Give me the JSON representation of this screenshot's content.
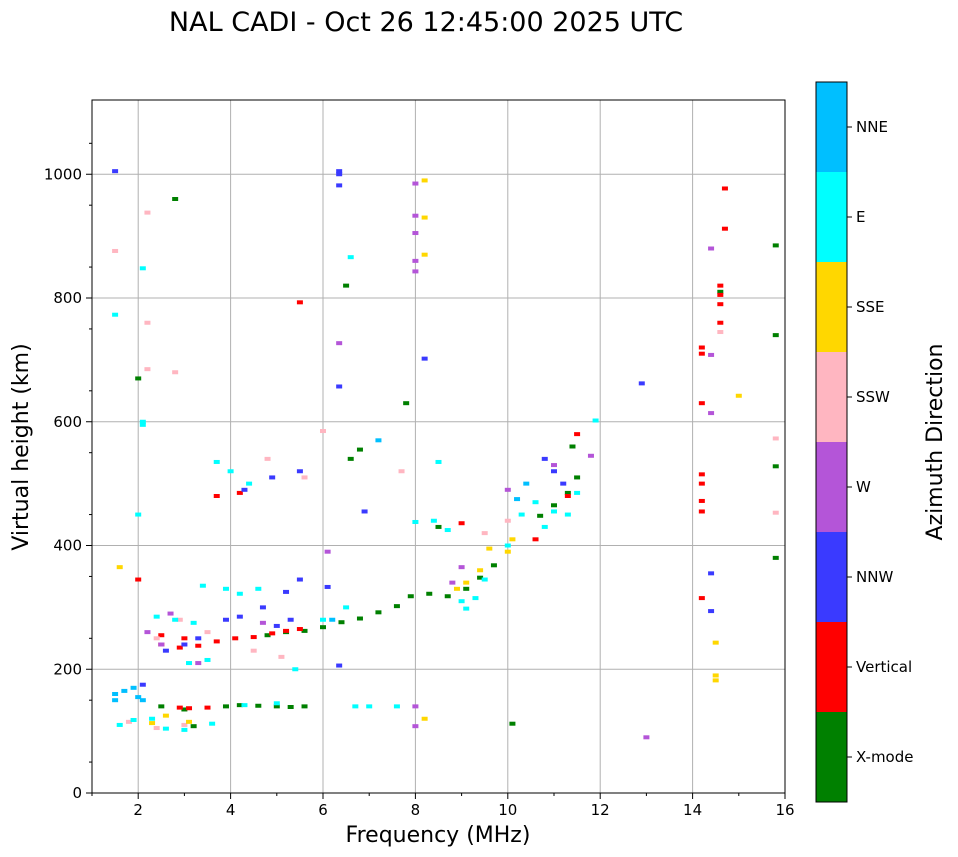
{
  "chart_data": {
    "type": "scatter",
    "title": "NAL CADI - Oct 26 12:45:00 2025 UTC",
    "xlabel": "Frequency (MHz)",
    "ylabel": "Virtual height (km)",
    "xlim": [
      1,
      16
    ],
    "ylim": [
      0,
      1120
    ],
    "xticks": [
      2,
      4,
      6,
      8,
      10,
      12,
      14,
      16
    ],
    "yticks": [
      0,
      200,
      400,
      600,
      800,
      1000
    ],
    "grid": true,
    "colorbar": {
      "title": "Azimuth Direction",
      "categories": [
        {
          "name": "X-mode",
          "color": "#008000"
        },
        {
          "name": "Vertical",
          "color": "#ff0000"
        },
        {
          "name": "NNW",
          "color": "#3a3aff"
        },
        {
          "name": "W",
          "color": "#b455d8"
        },
        {
          "name": "SSW",
          "color": "#ffb6c1"
        },
        {
          "name": "SSE",
          "color": "#ffd700"
        },
        {
          "name": "E",
          "color": "#00ffff"
        },
        {
          "name": "NNE",
          "color": "#00bfff"
        }
      ]
    },
    "series": [
      {
        "name": "X-mode",
        "points": [
          [
            3.9,
            140
          ],
          [
            4.2,
            142
          ],
          [
            4.6,
            141
          ],
          [
            5.0,
            140
          ],
          [
            5.3,
            139
          ],
          [
            5.6,
            140
          ],
          [
            4.8,
            255
          ],
          [
            5.2,
            260
          ],
          [
            5.6,
            262
          ],
          [
            6.0,
            268
          ],
          [
            6.4,
            276
          ],
          [
            6.8,
            282
          ],
          [
            7.2,
            292
          ],
          [
            7.6,
            302
          ],
          [
            7.9,
            318
          ],
          [
            8.3,
            322
          ],
          [
            8.7,
            318
          ],
          [
            9.1,
            330
          ],
          [
            9.4,
            348
          ],
          [
            9.7,
            368
          ],
          [
            10.7,
            448
          ],
          [
            11.0,
            465
          ],
          [
            11.3,
            485
          ],
          [
            11.5,
            510
          ],
          [
            11.4,
            560
          ],
          [
            6.6,
            540
          ],
          [
            6.8,
            555
          ],
          [
            6.5,
            820
          ],
          [
            7.8,
            630
          ],
          [
            15.8,
            885
          ],
          [
            15.8,
            740
          ],
          [
            15.8,
            528
          ],
          [
            15.8,
            380
          ],
          [
            10.1,
            112
          ],
          [
            3.0,
            135
          ],
          [
            3.2,
            108
          ],
          [
            2.5,
            140
          ],
          [
            8.5,
            430
          ],
          [
            14.6,
            810
          ],
          [
            2.0,
            670
          ],
          [
            2.8,
            960
          ]
        ]
      },
      {
        "name": "Vertical",
        "points": [
          [
            2.5,
            240
          ],
          [
            2.9,
            235
          ],
          [
            3.3,
            238
          ],
          [
            3.7,
            245
          ],
          [
            4.1,
            250
          ],
          [
            4.5,
            252
          ],
          [
            4.9,
            258
          ],
          [
            5.2,
            262
          ],
          [
            5.5,
            265
          ],
          [
            2.9,
            138
          ],
          [
            3.1,
            137
          ],
          [
            3.5,
            138
          ],
          [
            2.5,
            255
          ],
          [
            3.0,
            250
          ],
          [
            4.2,
            485
          ],
          [
            3.7,
            480
          ],
          [
            14.2,
            455
          ],
          [
            14.2,
            472
          ],
          [
            14.2,
            500
          ],
          [
            14.2,
            515
          ],
          [
            14.2,
            630
          ],
          [
            14.2,
            710
          ],
          [
            14.2,
            720
          ],
          [
            14.6,
            760
          ],
          [
            14.6,
            790
          ],
          [
            14.6,
            805
          ],
          [
            14.6,
            820
          ],
          [
            14.7,
            912
          ],
          [
            14.7,
            977
          ],
          [
            14.2,
            315
          ],
          [
            11.5,
            580
          ],
          [
            10.6,
            410
          ],
          [
            11.3,
            480
          ],
          [
            5.5,
            793
          ],
          [
            2.0,
            345
          ],
          [
            9.0,
            436
          ]
        ]
      },
      {
        "name": "NNW",
        "points": [
          [
            6.35,
            1005
          ],
          [
            6.35,
            1000
          ],
          [
            6.35,
            982
          ],
          [
            6.35,
            657
          ],
          [
            6.35,
            206
          ],
          [
            1.5,
            1005
          ],
          [
            3.3,
            250
          ],
          [
            3.9,
            280
          ],
          [
            4.2,
            285
          ],
          [
            4.7,
            300
          ],
          [
            5.2,
            325
          ],
          [
            5.5,
            345
          ],
          [
            5.0,
            270
          ],
          [
            5.3,
            280
          ],
          [
            2.6,
            230
          ],
          [
            3.0,
            240
          ],
          [
            14.4,
            355
          ],
          [
            14.4,
            294
          ],
          [
            12.9,
            662
          ],
          [
            8.2,
            702
          ],
          [
            10.8,
            540
          ],
          [
            11.0,
            520
          ],
          [
            11.2,
            500
          ],
          [
            6.9,
            455
          ],
          [
            4.9,
            510
          ],
          [
            5.5,
            520
          ],
          [
            4.3,
            490
          ],
          [
            2.1,
            175
          ],
          [
            6.1,
            333
          ]
        ]
      },
      {
        "name": "W",
        "points": [
          [
            8.0,
            985
          ],
          [
            8.0,
            933
          ],
          [
            8.0,
            905
          ],
          [
            8.0,
            860
          ],
          [
            8.0,
            843
          ],
          [
            6.35,
            727
          ],
          [
            14.4,
            880
          ],
          [
            14.4,
            708
          ],
          [
            14.4,
            614
          ],
          [
            11.8,
            545
          ],
          [
            11.0,
            530
          ],
          [
            10.0,
            490
          ],
          [
            9.0,
            365
          ],
          [
            8.8,
            340
          ],
          [
            6.1,
            390
          ],
          [
            13.0,
            90
          ],
          [
            2.5,
            240
          ],
          [
            3.3,
            210
          ],
          [
            4.7,
            275
          ],
          [
            8.0,
            140
          ],
          [
            8.0,
            108
          ],
          [
            2.7,
            290
          ],
          [
            2.2,
            260
          ]
        ]
      },
      {
        "name": "SSW",
        "points": [
          [
            1.5,
            876
          ],
          [
            2.2,
            938
          ],
          [
            2.2,
            760
          ],
          [
            2.2,
            685
          ],
          [
            2.8,
            680
          ],
          [
            6.0,
            585
          ],
          [
            4.8,
            540
          ],
          [
            5.6,
            510
          ],
          [
            15.8,
            573
          ],
          [
            15.8,
            453
          ],
          [
            14.6,
            745
          ],
          [
            2.4,
            250
          ],
          [
            2.9,
            280
          ],
          [
            3.5,
            260
          ],
          [
            4.5,
            230
          ],
          [
            5.1,
            220
          ],
          [
            1.8,
            115
          ],
          [
            2.4,
            105
          ],
          [
            3.0,
            110
          ],
          [
            9.5,
            420
          ],
          [
            10.0,
            440
          ],
          [
            7.7,
            520
          ]
        ]
      },
      {
        "name": "SSE",
        "points": [
          [
            8.2,
            990
          ],
          [
            8.2,
            930
          ],
          [
            8.2,
            870
          ],
          [
            15.0,
            642
          ],
          [
            14.5,
            243
          ],
          [
            14.5,
            190
          ],
          [
            14.5,
            182
          ],
          [
            9.4,
            360
          ],
          [
            9.6,
            395
          ],
          [
            10.0,
            390
          ],
          [
            10.1,
            410
          ],
          [
            9.1,
            340
          ],
          [
            8.9,
            330
          ],
          [
            8.2,
            120
          ],
          [
            1.6,
            365
          ],
          [
            2.6,
            125
          ],
          [
            3.1,
            115
          ],
          [
            2.3,
            113
          ]
        ]
      },
      {
        "name": "E",
        "points": [
          [
            1.5,
            773
          ],
          [
            2.1,
            848
          ],
          [
            2.1,
            600
          ],
          [
            2.1,
            595
          ],
          [
            6.6,
            866
          ],
          [
            3.7,
            535
          ],
          [
            4.0,
            520
          ],
          [
            4.4,
            500
          ],
          [
            8.5,
            535
          ],
          [
            8.0,
            438
          ],
          [
            8.4,
            440
          ],
          [
            8.7,
            425
          ],
          [
            9.0,
            310
          ],
          [
            9.1,
            298
          ],
          [
            9.3,
            315
          ],
          [
            9.5,
            345
          ],
          [
            10.0,
            400
          ],
          [
            10.3,
            450
          ],
          [
            10.6,
            470
          ],
          [
            10.8,
            430
          ],
          [
            11.0,
            455
          ],
          [
            11.3,
            450
          ],
          [
            11.5,
            485
          ],
          [
            11.9,
            602
          ],
          [
            3.4,
            335
          ],
          [
            3.9,
            330
          ],
          [
            4.2,
            322
          ],
          [
            4.6,
            330
          ],
          [
            6.7,
            140
          ],
          [
            7.0,
            140
          ],
          [
            7.6,
            140
          ],
          [
            4.3,
            142
          ],
          [
            5.0,
            145
          ],
          [
            3.1,
            210
          ],
          [
            3.5,
            215
          ],
          [
            2.4,
            285
          ],
          [
            2.8,
            280
          ],
          [
            3.2,
            275
          ],
          [
            5.4,
            200
          ],
          [
            1.6,
            110
          ],
          [
            1.9,
            118
          ],
          [
            2.3,
            120
          ],
          [
            2.6,
            104
          ],
          [
            3.0,
            102
          ],
          [
            3.6,
            112
          ],
          [
            6.0,
            280
          ],
          [
            6.5,
            300
          ],
          [
            2.0,
            450
          ]
        ]
      },
      {
        "name": "NNE",
        "points": [
          [
            1.5,
            160
          ],
          [
            1.7,
            165
          ],
          [
            1.9,
            170
          ],
          [
            2.0,
            155
          ],
          [
            1.5,
            150
          ],
          [
            2.1,
            150
          ],
          [
            6.2,
            280
          ],
          [
            10.2,
            475
          ],
          [
            10.4,
            500
          ],
          [
            7.2,
            570
          ]
        ]
      }
    ]
  }
}
